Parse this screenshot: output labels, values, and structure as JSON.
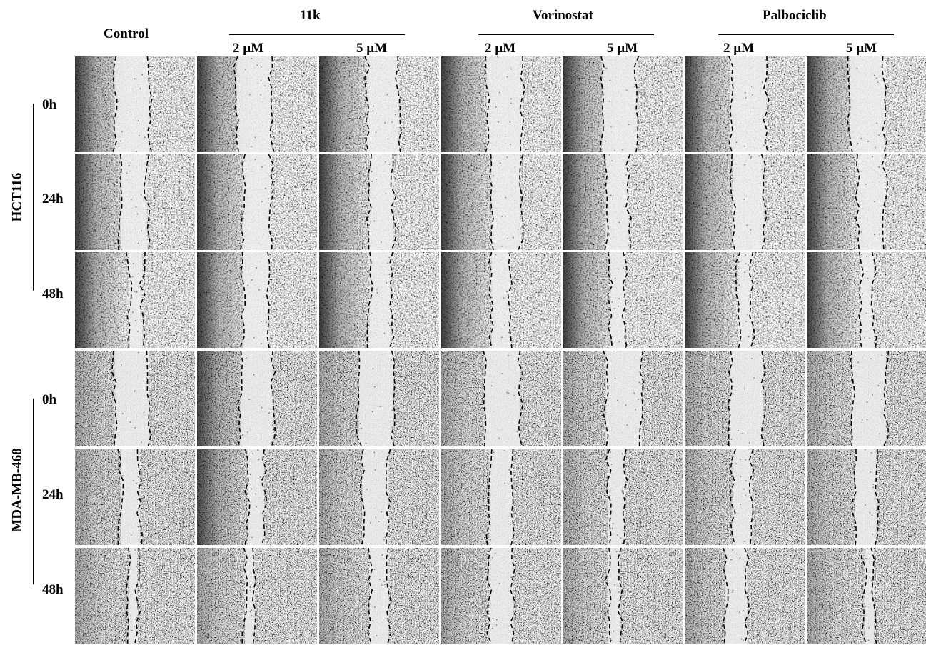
{
  "figure": {
    "column_headers": [
      "Control",
      "2 µM",
      "5 µM",
      "2 µM",
      "5 µM",
      "2 µM",
      "5 µM"
    ],
    "groups": [
      {
        "label": "11k",
        "span": [
          1,
          2
        ]
      },
      {
        "label": "Vorinostat",
        "span": [
          3,
          4
        ]
      },
      {
        "label": "Palbociclib",
        "span": [
          5,
          6
        ]
      }
    ],
    "cell_lines": [
      {
        "label": "HCT116",
        "timepoints": [
          "0h",
          "24h",
          "48h"
        ]
      },
      {
        "label": "MDA-MB-468",
        "timepoints": [
          "0h",
          "24h",
          "48h"
        ]
      }
    ],
    "panel_description": "Phase-contrast scratch wound images with dashed lines marking wound edges"
  }
}
